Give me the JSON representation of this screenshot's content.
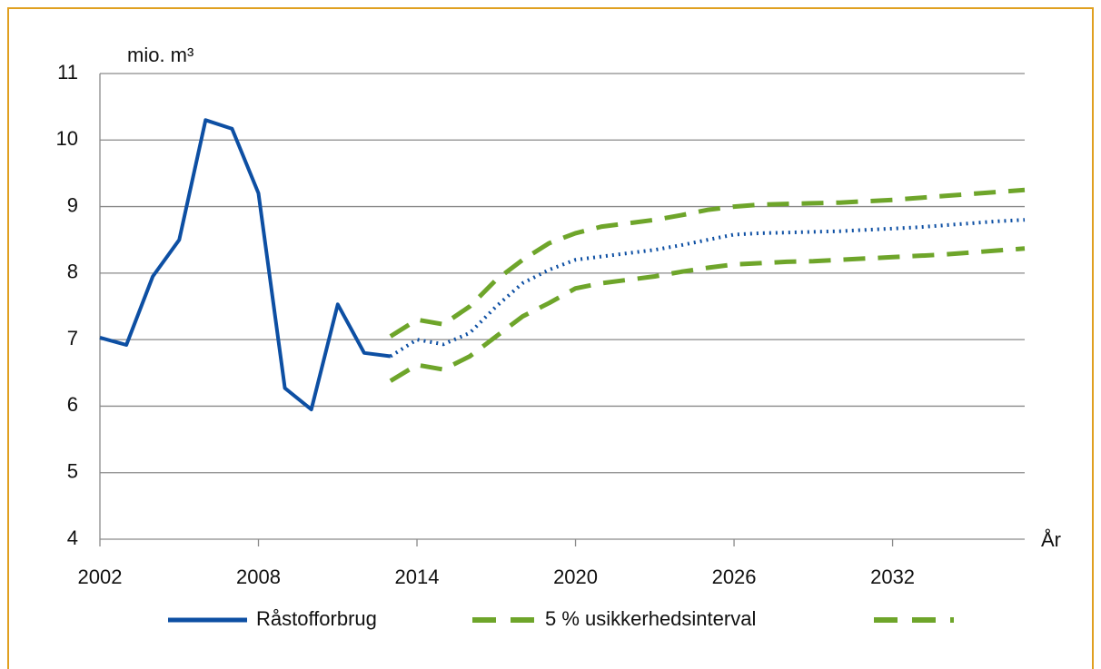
{
  "chart_data": {
    "type": "line",
    "y_unit_label": "mio. m³",
    "x_label": "År",
    "x": [
      2002,
      2003,
      2004,
      2005,
      2006,
      2007,
      2008,
      2009,
      2010,
      2011,
      2012,
      2013,
      2014,
      2015,
      2016,
      2017,
      2018,
      2019,
      2020,
      2021,
      2022,
      2023,
      2024,
      2025,
      2026,
      2027,
      2028,
      2029,
      2030,
      2031,
      2032,
      2033,
      2034,
      2035,
      2036,
      2037
    ],
    "series": [
      {
        "name": "Råstofforbrug",
        "color": "#0d4fa3",
        "style": "solid",
        "values": [
          7.03,
          6.92,
          7.95,
          8.5,
          10.3,
          10.17,
          9.2,
          6.27,
          5.95,
          7.53,
          6.8,
          6.75,
          null,
          null,
          null,
          null,
          null,
          null,
          null,
          null,
          null,
          null,
          null,
          null,
          null,
          null,
          null,
          null,
          null,
          null,
          null,
          null,
          null,
          null,
          null,
          null
        ]
      },
      {
        "color": "#0d4fa3",
        "style": "dotted",
        "values": [
          null,
          null,
          null,
          null,
          null,
          null,
          null,
          null,
          null,
          null,
          null,
          6.75,
          7.0,
          6.93,
          7.1,
          7.5,
          7.85,
          8.05,
          8.2,
          8.25,
          8.3,
          8.35,
          8.42,
          8.5,
          8.58,
          8.6,
          8.61,
          8.62,
          8.63,
          8.65,
          8.67,
          8.69,
          8.72,
          8.75,
          8.78,
          8.8
        ]
      },
      {
        "name": "5 % usikkerhedsinterval",
        "color": "#6ea52a",
        "style": "dashed",
        "values": [
          null,
          null,
          null,
          null,
          null,
          null,
          null,
          null,
          null,
          null,
          null,
          7.05,
          7.3,
          7.23,
          7.5,
          7.9,
          8.2,
          8.45,
          8.6,
          8.7,
          8.75,
          8.8,
          8.87,
          8.95,
          9.0,
          9.03,
          9.04,
          9.05,
          9.06,
          9.08,
          9.1,
          9.13,
          9.16,
          9.19,
          9.22,
          9.25
        ]
      },
      {
        "color": "#6ea52a",
        "style": "dashed",
        "values": [
          null,
          null,
          null,
          null,
          null,
          null,
          null,
          null,
          null,
          null,
          null,
          6.38,
          6.62,
          6.55,
          6.75,
          7.05,
          7.35,
          7.55,
          7.77,
          7.85,
          7.9,
          7.95,
          8.02,
          8.08,
          8.13,
          8.15,
          8.17,
          8.18,
          8.2,
          8.22,
          8.24,
          8.26,
          8.28,
          8.31,
          8.34,
          8.37
        ]
      }
    ],
    "xlim": [
      2002,
      2037
    ],
    "xticks": [
      2002,
      2008,
      2014,
      2020,
      2026,
      2032
    ],
    "ylim": [
      4,
      11
    ],
    "yticks": [
      4,
      5,
      6,
      7,
      8,
      9,
      10,
      11
    ],
    "grid": true
  }
}
